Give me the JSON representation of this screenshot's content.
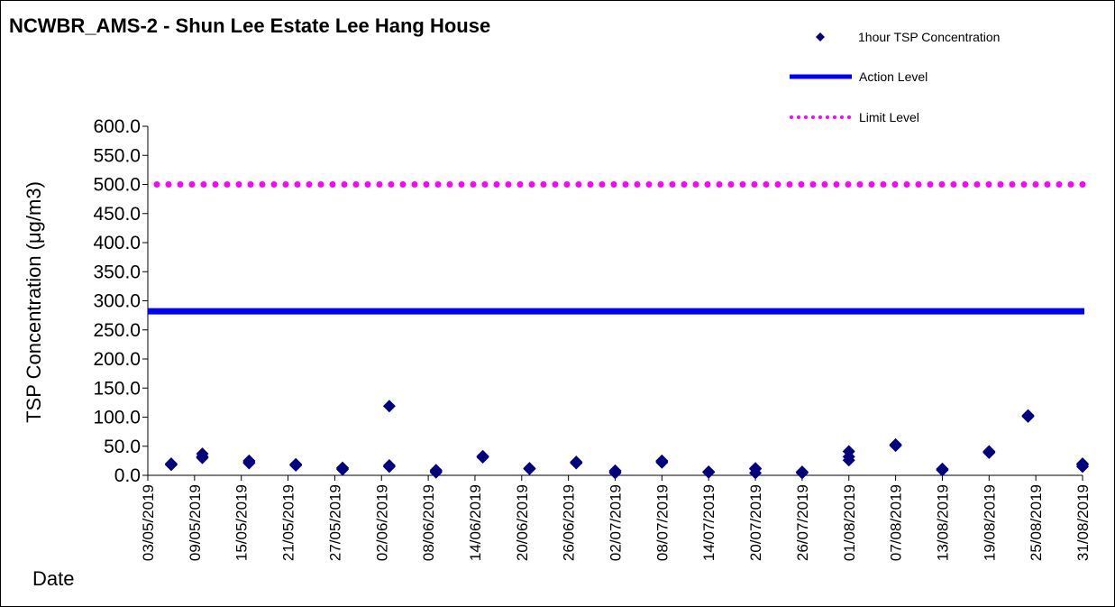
{
  "chart_data": {
    "type": "scatter",
    "title": "NCWBR_AMS-2 - Shun Lee Estate Lee Hang House",
    "xlabel": "Date",
    "ylabel": "TSP Concentration (μg/m3)",
    "ylim": [
      0,
      600
    ],
    "xlim": [
      "03/05/2019",
      "31/08/2019"
    ],
    "grid": false,
    "legend_position": "top-right",
    "y_ticks": [
      "0.0",
      "50.0",
      "100.0",
      "150.0",
      "200.0",
      "250.0",
      "300.0",
      "350.0",
      "400.0",
      "450.0",
      "500.0",
      "550.0",
      "600.0"
    ],
    "x_ticks": [
      "03/05/2019",
      "09/05/2019",
      "15/05/2019",
      "21/05/2019",
      "27/05/2019",
      "02/06/2019",
      "08/06/2019",
      "14/06/2019",
      "20/06/2019",
      "26/06/2019",
      "02/07/2019",
      "08/07/2019",
      "14/07/2019",
      "20/07/2019",
      "26/07/2019",
      "01/08/2019",
      "07/08/2019",
      "13/08/2019",
      "19/08/2019",
      "25/08/2019",
      "31/08/2019"
    ],
    "series": [
      {
        "name": "1hour TSP Concentration",
        "kind": "scatter",
        "color": "#000080",
        "points": [
          {
            "date": "06/05/2019",
            "y": 18
          },
          {
            "date": "06/05/2019",
            "y": 19
          },
          {
            "date": "06/05/2019",
            "y": 20
          },
          {
            "date": "10/05/2019",
            "y": 30
          },
          {
            "date": "10/05/2019",
            "y": 32
          },
          {
            "date": "10/05/2019",
            "y": 37
          },
          {
            "date": "16/05/2019",
            "y": 21
          },
          {
            "date": "16/05/2019",
            "y": 23
          },
          {
            "date": "16/05/2019",
            "y": 25
          },
          {
            "date": "22/05/2019",
            "y": 17
          },
          {
            "date": "22/05/2019",
            "y": 18
          },
          {
            "date": "22/05/2019",
            "y": 19
          },
          {
            "date": "28/05/2019",
            "y": 10
          },
          {
            "date": "28/05/2019",
            "y": 12
          },
          {
            "date": "28/05/2019",
            "y": 13
          },
          {
            "date": "03/06/2019",
            "y": 15
          },
          {
            "date": "03/06/2019",
            "y": 17
          },
          {
            "date": "03/06/2019",
            "y": 119
          },
          {
            "date": "09/06/2019",
            "y": 5
          },
          {
            "date": "09/06/2019",
            "y": 7
          },
          {
            "date": "09/06/2019",
            "y": 9
          },
          {
            "date": "15/06/2019",
            "y": 31
          },
          {
            "date": "15/06/2019",
            "y": 32
          },
          {
            "date": "15/06/2019",
            "y": 33
          },
          {
            "date": "21/06/2019",
            "y": 11
          },
          {
            "date": "21/06/2019",
            "y": 12
          },
          {
            "date": "21/06/2019",
            "y": 12
          },
          {
            "date": "27/06/2019",
            "y": 21
          },
          {
            "date": "27/06/2019",
            "y": 22
          },
          {
            "date": "27/06/2019",
            "y": 23
          },
          {
            "date": "02/07/2019",
            "y": 4
          },
          {
            "date": "02/07/2019",
            "y": 6
          },
          {
            "date": "02/07/2019",
            "y": 8
          },
          {
            "date": "08/07/2019",
            "y": 22
          },
          {
            "date": "08/07/2019",
            "y": 24
          },
          {
            "date": "08/07/2019",
            "y": 25
          },
          {
            "date": "14/07/2019",
            "y": 5
          },
          {
            "date": "14/07/2019",
            "y": 6
          },
          {
            "date": "14/07/2019",
            "y": 6
          },
          {
            "date": "20/07/2019",
            "y": 4
          },
          {
            "date": "20/07/2019",
            "y": 11
          },
          {
            "date": "20/07/2019",
            "y": 12
          },
          {
            "date": "26/07/2019",
            "y": 4
          },
          {
            "date": "26/07/2019",
            "y": 5
          },
          {
            "date": "26/07/2019",
            "y": 6
          },
          {
            "date": "01/08/2019",
            "y": 26
          },
          {
            "date": "01/08/2019",
            "y": 32
          },
          {
            "date": "01/08/2019",
            "y": 41
          },
          {
            "date": "07/08/2019",
            "y": 51
          },
          {
            "date": "07/08/2019",
            "y": 52
          },
          {
            "date": "07/08/2019",
            "y": 53
          },
          {
            "date": "13/08/2019",
            "y": 9
          },
          {
            "date": "13/08/2019",
            "y": 10
          },
          {
            "date": "13/08/2019",
            "y": 11
          },
          {
            "date": "19/08/2019",
            "y": 39
          },
          {
            "date": "19/08/2019",
            "y": 40
          },
          {
            "date": "19/08/2019",
            "y": 41
          },
          {
            "date": "24/08/2019",
            "y": 101
          },
          {
            "date": "24/08/2019",
            "y": 102
          },
          {
            "date": "24/08/2019",
            "y": 103
          },
          {
            "date": "31/08/2019",
            "y": 15
          },
          {
            "date": "31/08/2019",
            "y": 18
          },
          {
            "date": "31/08/2019",
            "y": 20
          }
        ]
      },
      {
        "name": "Action Level",
        "kind": "line",
        "color": "#0000FF",
        "y": 282
      },
      {
        "name": "Limit Level",
        "kind": "dotted-line",
        "color": "#FF00FF",
        "y": 500
      }
    ]
  }
}
